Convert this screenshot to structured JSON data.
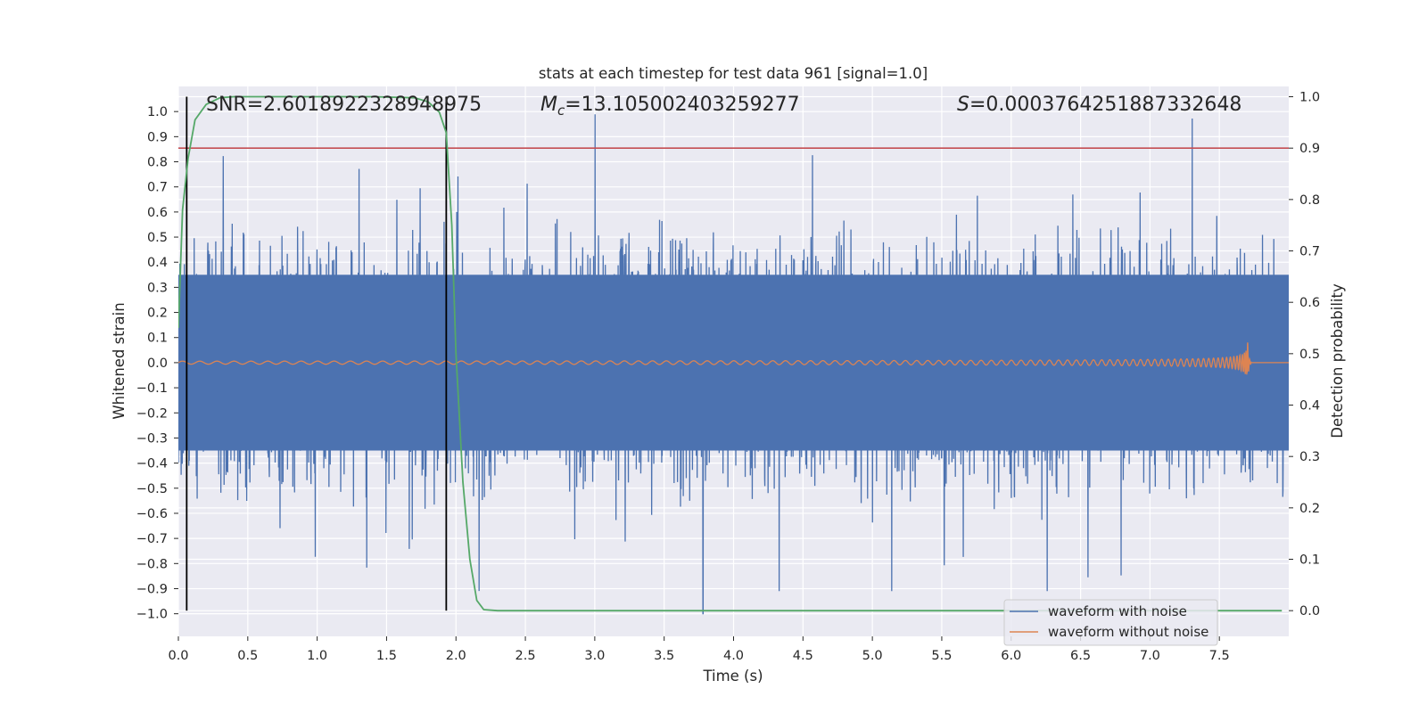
{
  "chart_data": {
    "type": "line",
    "title": "stats at each timestep for test data 961 [signal=1.0]",
    "xlabel": "Time (s)",
    "ylabel": "Whitened strain",
    "ylabel_right": "Detection probability",
    "xlim": [
      0,
      8
    ],
    "ylim": [
      -1.09,
      1.1
    ],
    "ylim_right": [
      -0.05,
      1.02
    ],
    "xticks": [
      0.0,
      0.5,
      1.0,
      1.5,
      2.0,
      2.5,
      3.0,
      3.5,
      4.0,
      4.5,
      5.0,
      5.5,
      6.0,
      6.5,
      7.0,
      7.5
    ],
    "xtick_labels": [
      "0.0",
      "0.5",
      "1.0",
      "1.5",
      "2.0",
      "2.5",
      "3.0",
      "3.5",
      "4.0",
      "4.5",
      "5.0",
      "5.5",
      "6.0",
      "6.5",
      "7.0",
      "7.5"
    ],
    "yticks": [
      1.0,
      0.9,
      0.8,
      0.7,
      0.6,
      0.5,
      0.4,
      0.3,
      0.2,
      0.1,
      0.0,
      -0.1,
      -0.2,
      -0.3,
      -0.4,
      -0.5,
      -0.6,
      -0.7,
      -0.8,
      -0.9,
      -1.0
    ],
    "ytick_labels": [
      "1.0",
      "0.9",
      "0.8",
      "0.7",
      "0.6",
      "0.5",
      "0.4",
      "0.3",
      "0.2",
      "0.1",
      "0.0",
      "−0.1",
      "−0.2",
      "−0.3",
      "−0.4",
      "−0.5",
      "−0.6",
      "−0.7",
      "−0.8",
      "−0.9",
      "−1.0"
    ],
    "yticks_right": [
      1.0,
      0.9,
      0.8,
      0.7,
      0.6,
      0.5,
      0.4,
      0.3,
      0.2,
      0.1,
      0.0
    ],
    "ytick_labels_right": [
      "1.0",
      "0.9",
      "0.8",
      "0.7",
      "0.6",
      "0.5",
      "0.4",
      "0.3",
      "0.2",
      "0.1",
      "0.0"
    ],
    "annotations": {
      "snr": "SNR=2.6018922328948975",
      "mc_symbol": "M",
      "mc_sub": "c",
      "mc_value": "=13.105002403259277",
      "s_symbol": "S",
      "s_value": "=0.0003764251887332648"
    },
    "vertical_markers_x": [
      0.06,
      1.93
    ],
    "threshold_probability": 0.9,
    "legend": {
      "position": "lower-right",
      "entries": [
        "waveform with noise",
        "waveform without noise"
      ]
    },
    "series": [
      {
        "name": "waveform with noise",
        "axis": "left",
        "color": "#4c72b0",
        "note": "whitened noisy strain, dense noise spanning approx -0.9..0.99 with a single spike to -1.0 near t=3.78",
        "envelope": {
          "core_amplitude": 0.35,
          "typical_peak": 0.6,
          "max": 0.99,
          "min": -1.0
        }
      },
      {
        "name": "waveform without noise",
        "axis": "left",
        "color": "#dd8452",
        "note": "chirp signal growing in amplitude, merging near t=7.7",
        "merger_time": 7.7,
        "peak_amplitude": 0.13
      },
      {
        "name": "detection probability",
        "axis": "right",
        "color": "#55a868",
        "x": [
          0.0,
          0.03,
          0.07,
          0.12,
          0.2,
          0.3,
          0.4,
          0.6,
          1.0,
          1.4,
          1.7,
          1.8,
          1.88,
          1.93,
          1.97,
          2.0,
          2.05,
          2.1,
          2.15,
          2.2,
          2.3,
          2.6,
          3.0,
          4.0,
          5.0,
          6.0,
          7.0,
          7.95
        ],
        "y": [
          0.55,
          0.78,
          0.88,
          0.955,
          0.985,
          0.998,
          1.0,
          1.0,
          1.0,
          1.0,
          0.998,
          0.99,
          0.97,
          0.93,
          0.75,
          0.5,
          0.25,
          0.1,
          0.02,
          0.002,
          0.0,
          0.0,
          0.0,
          0.0,
          0.0,
          0.0,
          0.0,
          0.0
        ]
      }
    ],
    "colors": {
      "background": "#eaeaf2",
      "grid": "#ffffff",
      "noisy": "#4c72b0",
      "clean": "#dd8452",
      "probability": "#55a868",
      "threshold": "#c44e52",
      "markers": "#000000"
    }
  }
}
